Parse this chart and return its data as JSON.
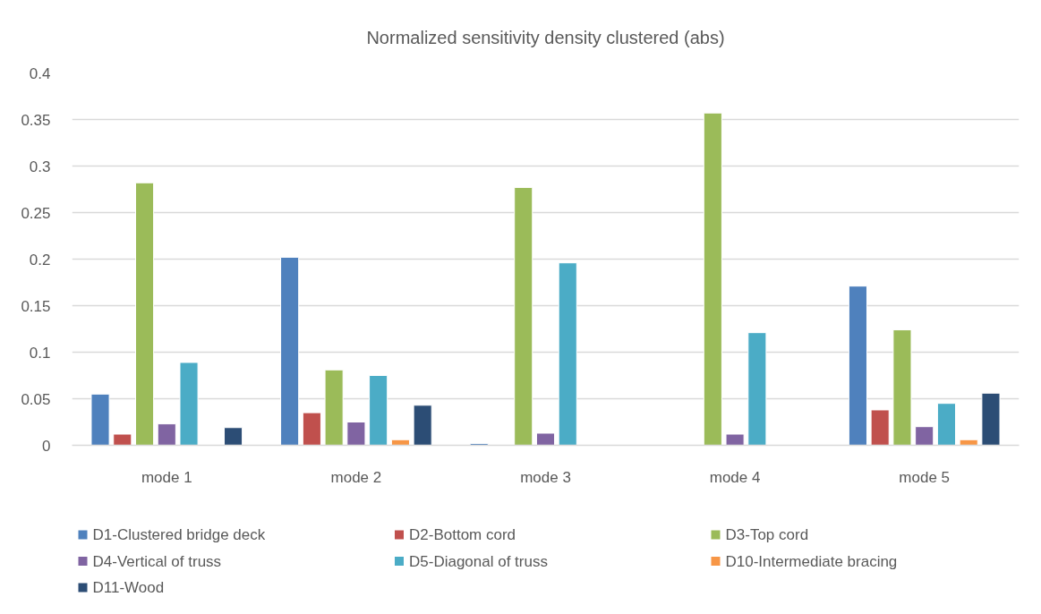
{
  "chart_data": {
    "type": "bar",
    "title": "Normalized sensitivity density clustered (abs)",
    "categories": [
      "mode 1",
      "mode 2",
      "mode 3",
      "mode 4",
      "mode 5"
    ],
    "series": [
      {
        "name": "D1-Clustered bridge deck",
        "color": "#4f81bd",
        "values": [
          0.055,
          0.202,
          0.002,
          null,
          0.171
        ]
      },
      {
        "name": "D2-Bottom cord",
        "color": "#c0504d",
        "values": [
          0.012,
          0.035,
          null,
          null,
          0.038
        ]
      },
      {
        "name": "D3-Top cord",
        "color": "#9bbb59",
        "values": [
          0.282,
          0.081,
          0.277,
          0.357,
          0.124
        ]
      },
      {
        "name": "D4-Vertical of truss",
        "color": "#8064a2",
        "values": [
          0.023,
          0.025,
          0.013,
          0.012,
          0.02
        ]
      },
      {
        "name": "D5-Diagonal of truss",
        "color": "#4bacc6",
        "values": [
          0.089,
          0.075,
          0.196,
          0.121,
          0.045
        ]
      },
      {
        "name": "D10-Intermediate bracing",
        "color": "#f79646",
        "values": [
          null,
          0.006,
          null,
          null,
          0.006
        ]
      },
      {
        "name": "D11-Wood",
        "color": "#2c4d75",
        "values": [
          0.019,
          0.043,
          null,
          null,
          0.056
        ]
      }
    ],
    "ylim": [
      0,
      0.4
    ],
    "yticks": [
      0,
      0.05,
      0.1,
      0.15,
      0.2,
      0.25,
      0.3,
      0.35,
      0.4
    ],
    "grid": "y",
    "legend": "bottom"
  }
}
